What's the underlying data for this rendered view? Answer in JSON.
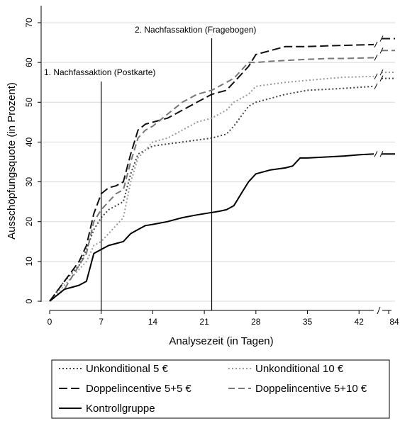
{
  "chart_data": {
    "type": "line",
    "xlabel": "Analysezeit (in Tagen)",
    "ylabel": "Ausschöpfungsquote (in Prozent)",
    "xlim": [
      0,
      45
    ],
    "ylim": [
      0,
      70
    ],
    "xticks": [
      "0",
      "7",
      "14",
      "21",
      "28",
      "35",
      "42"
    ],
    "extra_tick": "84",
    "yticks": [
      "0",
      "10",
      "20",
      "30",
      "40",
      "50",
      "60",
      "70"
    ],
    "grid": "horizontal",
    "axis_break": true,
    "legend_position": "bottom",
    "annotations": [
      {
        "x": 7,
        "label": "1. Nachfassaktion (Postkarte)"
      },
      {
        "x": 22,
        "label": "2. Nachfassaktion (Fragebogen)"
      }
    ],
    "series": [
      {
        "name": "Unkonditional 5 €",
        "style": "dotted",
        "color": "#444444",
        "points": [
          [
            0,
            0
          ],
          [
            2,
            5
          ],
          [
            4,
            9
          ],
          [
            5,
            13
          ],
          [
            6,
            18
          ],
          [
            7,
            21
          ],
          [
            8,
            23
          ],
          [
            9,
            24
          ],
          [
            10,
            25
          ],
          [
            11,
            32
          ],
          [
            12,
            37
          ],
          [
            13,
            38
          ],
          [
            14,
            39
          ],
          [
            16,
            39.5
          ],
          [
            18,
            40
          ],
          [
            20,
            40.5
          ],
          [
            22,
            41
          ],
          [
            24,
            42
          ],
          [
            25,
            44
          ],
          [
            27,
            49
          ],
          [
            28,
            50
          ],
          [
            30,
            51
          ],
          [
            32,
            52
          ],
          [
            35,
            53
          ],
          [
            38,
            53.3
          ],
          [
            40,
            53.5
          ],
          [
            44,
            54
          ]
        ],
        "value_84": 56
      },
      {
        "name": "Unkonditional 10 €",
        "style": "dotted",
        "color": "#9a9a9a",
        "points": [
          [
            0,
            0
          ],
          [
            2,
            4
          ],
          [
            4,
            8
          ],
          [
            5,
            10
          ],
          [
            6,
            14
          ],
          [
            7,
            15
          ],
          [
            8,
            17
          ],
          [
            9,
            19
          ],
          [
            10,
            21
          ],
          [
            11,
            30
          ],
          [
            12,
            36
          ],
          [
            13,
            38
          ],
          [
            14,
            40
          ],
          [
            16,
            41
          ],
          [
            18,
            43
          ],
          [
            20,
            45
          ],
          [
            22,
            46
          ],
          [
            24,
            48
          ],
          [
            25,
            50
          ],
          [
            27,
            52
          ],
          [
            28,
            54
          ],
          [
            30,
            54.5
          ],
          [
            32,
            55
          ],
          [
            35,
            55.5
          ],
          [
            38,
            56
          ],
          [
            40,
            56.3
          ],
          [
            44,
            56.5
          ]
        ],
        "value_84": 57.5
      },
      {
        "name": "Doppelincentive 5+5 €",
        "style": "longdash",
        "color": "#111111",
        "points": [
          [
            0,
            0
          ],
          [
            2,
            5
          ],
          [
            4,
            10
          ],
          [
            5,
            14
          ],
          [
            6,
            22
          ],
          [
            7,
            27
          ],
          [
            8,
            28.5
          ],
          [
            9,
            29
          ],
          [
            10,
            30
          ],
          [
            11,
            37
          ],
          [
            12,
            43
          ],
          [
            13,
            44.5
          ],
          [
            14,
            45
          ],
          [
            16,
            46
          ],
          [
            18,
            48
          ],
          [
            20,
            50
          ],
          [
            22,
            52
          ],
          [
            24,
            53
          ],
          [
            25,
            55
          ],
          [
            27,
            59
          ],
          [
            28,
            62
          ],
          [
            30,
            63
          ],
          [
            32,
            64
          ],
          [
            35,
            64
          ],
          [
            38,
            64.2
          ],
          [
            40,
            64.3
          ],
          [
            44,
            64.5
          ]
        ],
        "value_84": 66
      },
      {
        "name": "Doppelincentive 5+10 €",
        "style": "dash",
        "color": "#777777",
        "points": [
          [
            0,
            0
          ],
          [
            2,
            3
          ],
          [
            4,
            9
          ],
          [
            5,
            12
          ],
          [
            6,
            20
          ],
          [
            7,
            23
          ],
          [
            8,
            25
          ],
          [
            9,
            27
          ],
          [
            10,
            28
          ],
          [
            11,
            35
          ],
          [
            12,
            41
          ],
          [
            13,
            43
          ],
          [
            14,
            44
          ],
          [
            16,
            47
          ],
          [
            18,
            50
          ],
          [
            20,
            52
          ],
          [
            22,
            53
          ],
          [
            24,
            55
          ],
          [
            25,
            56
          ],
          [
            27,
            60
          ],
          [
            28,
            60
          ],
          [
            30,
            60.3
          ],
          [
            32,
            60.5
          ],
          [
            35,
            60.8
          ],
          [
            38,
            61
          ],
          [
            40,
            61
          ],
          [
            44,
            61.2
          ]
        ],
        "value_84": 63
      },
      {
        "name": "Kontrollgruppe",
        "style": "solid",
        "color": "#000000",
        "points": [
          [
            0,
            0
          ],
          [
            2,
            3
          ],
          [
            3,
            3.5
          ],
          [
            4,
            4
          ],
          [
            5,
            5
          ],
          [
            6,
            12
          ],
          [
            7,
            13
          ],
          [
            8,
            14
          ],
          [
            9,
            14.5
          ],
          [
            10,
            15
          ],
          [
            11,
            17
          ],
          [
            12,
            18
          ],
          [
            13,
            19
          ],
          [
            14,
            19.3
          ],
          [
            16,
            20
          ],
          [
            18,
            21
          ],
          [
            20,
            21.7
          ],
          [
            22,
            22.3
          ],
          [
            23,
            22.6
          ],
          [
            24,
            23
          ],
          [
            25,
            24
          ],
          [
            26,
            27
          ],
          [
            27,
            30
          ],
          [
            28,
            32
          ],
          [
            30,
            33
          ],
          [
            32,
            33.5
          ],
          [
            33,
            34
          ],
          [
            34,
            36
          ],
          [
            35,
            36
          ],
          [
            38,
            36.3
          ],
          [
            40,
            36.5
          ],
          [
            42,
            36.8
          ],
          [
            44,
            37
          ]
        ],
        "value_84": 37
      }
    ]
  }
}
